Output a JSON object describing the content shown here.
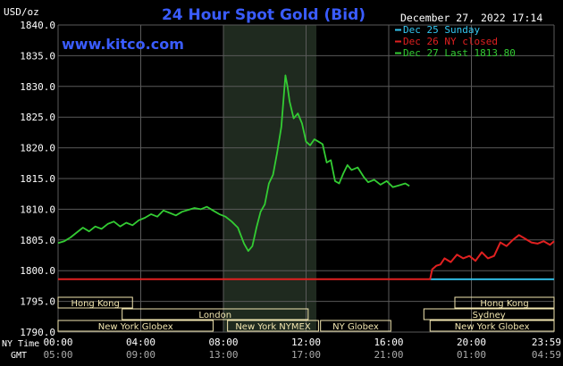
{
  "header": {
    "title": "24 Hour Spot Gold (Bid)",
    "datetime": "December 27, 2022 17:14",
    "unit": "USD/oz",
    "website": "www.kitco.com"
  },
  "legend": [
    {
      "label": "Dec 25 Sunday",
      "color": "#33c6f0"
    },
    {
      "label": "Dec 26 NY closed",
      "color": "#e02020"
    },
    {
      "label": "Dec 27 Last 1813.80",
      "color": "#33cc33"
    }
  ],
  "markets": {
    "row1": [
      "Hong Kong",
      "Hong Kong"
    ],
    "row2": [
      "London",
      "Sydney"
    ],
    "row3": [
      "New York Globex",
      "New York NYMEX",
      "NY Globex",
      "New York Globex"
    ]
  },
  "axis_row_labels": {
    "ny_time": "NY Time",
    "gmt": "GMT"
  },
  "colors": {
    "background": "#000000",
    "grid": "#5a5a5a",
    "axis_text": "#ffffff",
    "title": "#3a5cff",
    "session_shade": "#1f2a1f",
    "market_box": "#f2e6b0"
  },
  "chart_data": {
    "type": "line",
    "title": "24 Hour Spot Gold (Bid)",
    "ylabel": "USD/oz",
    "xlabel": "",
    "ylim": [
      1790.0,
      1840.0
    ],
    "yticks": [
      "1790.0",
      "1795.0",
      "1800.0",
      "1805.0",
      "1810.0",
      "1815.0",
      "1820.0",
      "1825.0",
      "1830.0",
      "1835.0",
      "1840.0"
    ],
    "xlim": [
      0,
      24
    ],
    "xticks_ny": [
      "00:00",
      "04:00",
      "08:00",
      "12:00",
      "16:00",
      "20:00",
      "23:59"
    ],
    "xticks_gmt": [
      "05:00",
      "09:00",
      "13:00",
      "17:00",
      "21:00",
      "01:00",
      "04:59"
    ],
    "grid": true,
    "legend_position": "top-right",
    "series": [
      {
        "name": "Dec 25 Sunday",
        "color": "#33c6f0",
        "x": [
          18.0,
          24.0
        ],
        "y": [
          1798.6,
          1798.6
        ]
      },
      {
        "name": "Dec 26 NY closed",
        "color": "#e02020",
        "x": [
          0.0,
          18.0,
          18.1,
          18.3,
          18.5,
          18.7,
          19.0,
          19.3,
          19.6,
          19.9,
          20.2,
          20.5,
          20.8,
          21.1,
          21.4,
          21.7,
          22.0,
          22.3,
          22.6,
          22.9,
          23.2,
          23.5,
          23.8,
          24.0
        ],
        "y": [
          1798.6,
          1798.6,
          1800.2,
          1800.8,
          1801.0,
          1802.0,
          1801.4,
          1802.6,
          1802.0,
          1802.4,
          1801.6,
          1803.0,
          1802.0,
          1802.4,
          1804.6,
          1804.0,
          1805.0,
          1805.8,
          1805.2,
          1804.6,
          1804.4,
          1804.8,
          1804.2,
          1804.8
        ]
      },
      {
        "name": "Dec 27 Last 1813.80",
        "color": "#33cc33",
        "x": [
          0.0,
          0.3,
          0.6,
          0.9,
          1.2,
          1.5,
          1.8,
          2.1,
          2.4,
          2.7,
          3.0,
          3.3,
          3.6,
          3.9,
          4.2,
          4.5,
          4.8,
          5.1,
          5.4,
          5.7,
          6.0,
          6.3,
          6.6,
          6.9,
          7.2,
          7.5,
          7.8,
          8.1,
          8.4,
          8.7,
          9.0,
          9.2,
          9.4,
          9.6,
          9.8,
          10.0,
          10.2,
          10.4,
          10.6,
          10.8,
          11.0,
          11.1,
          11.2,
          11.4,
          11.6,
          11.8,
          12.0,
          12.2,
          12.4,
          12.6,
          12.8,
          13.0,
          13.2,
          13.4,
          13.6,
          13.8,
          14.0,
          14.2,
          14.5,
          14.8,
          15.0,
          15.3,
          15.6,
          15.9,
          16.2,
          16.5,
          16.8,
          17.0
        ],
        "y": [
          1804.5,
          1804.8,
          1805.4,
          1806.2,
          1807.0,
          1806.4,
          1807.2,
          1806.8,
          1807.6,
          1808.0,
          1807.2,
          1807.8,
          1807.4,
          1808.2,
          1808.6,
          1809.2,
          1808.8,
          1809.8,
          1809.4,
          1809.0,
          1809.6,
          1809.9,
          1810.2,
          1810.0,
          1810.4,
          1809.8,
          1809.2,
          1808.8,
          1808.0,
          1807.0,
          1804.4,
          1803.2,
          1804.0,
          1807.0,
          1809.6,
          1810.8,
          1814.2,
          1815.6,
          1819.2,
          1823.4,
          1831.8,
          1830.0,
          1827.6,
          1824.8,
          1825.6,
          1824.0,
          1821.0,
          1820.4,
          1821.4,
          1821.0,
          1820.6,
          1817.6,
          1818.0,
          1814.6,
          1814.2,
          1815.8,
          1817.2,
          1816.4,
          1816.8,
          1815.2,
          1814.4,
          1814.8,
          1814.0,
          1814.6,
          1813.6,
          1813.9,
          1814.2,
          1813.8
        ]
      }
    ]
  }
}
